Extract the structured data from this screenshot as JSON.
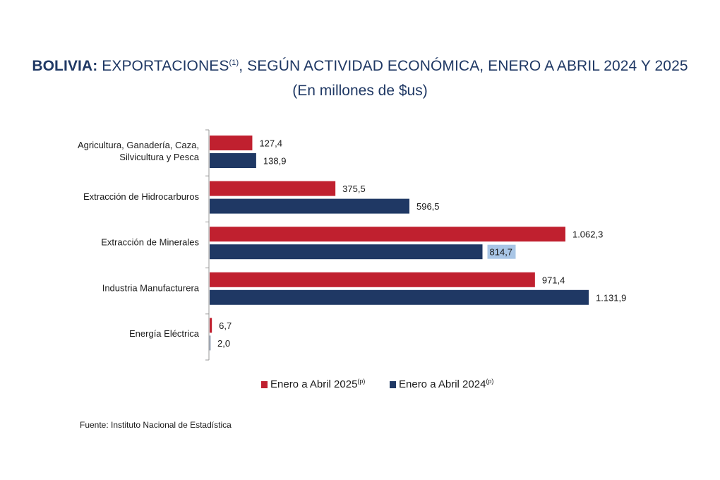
{
  "header": {
    "title_bold": "BOLIVIA:",
    "title_main": " EXPORTACIONES",
    "title_sup": "(1)",
    "title_rest": ", SEGÚN ACTIVIDAD ECONÓMICA, ENERO A ABRIL 2024 Y 2025",
    "subtitle": "(En millones de $us)"
  },
  "chart_data": {
    "type": "bar",
    "orientation": "horizontal",
    "title": "BOLIVIA: EXPORTACIONES(1), SEGÚN ACTIVIDAD ECONÓMICA, ENERO A ABRIL 2024 Y 2025",
    "subtitle": "(En millones de $us)",
    "categories": [
      [
        "Agricultura, Ganadería, Caza,",
        "Silvicultura y Pesca"
      ],
      [
        "Extracción de Hidrocarburos"
      ],
      [
        "Extracción de Minerales"
      ],
      [
        "Industria Manufacturera"
      ],
      [
        "Energía Eléctrica"
      ]
    ],
    "series": [
      {
        "name": "Enero a Abril  2025",
        "name_sup": "(p)",
        "color": "#c0202f",
        "values": [
          127.4,
          375.5,
          1062.3,
          971.4,
          6.7
        ],
        "labels": [
          "127,4",
          "375,5",
          "1.062,3",
          "971,4",
          "6,7"
        ]
      },
      {
        "name": "Enero a Abril  2024",
        "name_sup": "(p)",
        "color": "#1f3864",
        "values": [
          138.9,
          596.5,
          814.7,
          1131.9,
          2.0
        ],
        "labels": [
          "138,9",
          "596,5",
          "814,7",
          "1.131,9",
          "2,0"
        ]
      }
    ],
    "highlighted_label": {
      "series": 1,
      "index": 2,
      "color": "#a9c6e6"
    },
    "xlim": [
      0,
      1200
    ],
    "grid": false,
    "legend_position": "bottom"
  },
  "source": "Fuente: Instituto Nacional de Estadística"
}
